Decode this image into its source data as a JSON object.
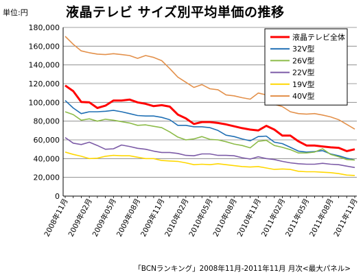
{
  "header": {
    "unit": "単位:円",
    "title": "液晶テレビ サイズ別平均単価の推移"
  },
  "footer": {
    "source": "「BCNランキング」2008年11月-2011年11月 月次<最大パネル>"
  },
  "chart_data": {
    "type": "line",
    "title": "液晶テレビ サイズ別平均単価の推移",
    "ylabel": "単位:円",
    "ylim": [
      0,
      180000
    ],
    "yticks": [
      0,
      20000,
      40000,
      60000,
      80000,
      100000,
      120000,
      140000,
      160000,
      180000
    ],
    "ytick_labels": [
      "0",
      "20,000",
      "40,000",
      "60,000",
      "80,000",
      "100,000",
      "120,000",
      "140,000",
      "160,000",
      "180,000"
    ],
    "x": [
      "2008年11月",
      "2008年12月",
      "2009年01月",
      "2009年02月",
      "2009年03月",
      "2009年04月",
      "2009年05月",
      "2009年06月",
      "2009年07月",
      "2009年08月",
      "2009年09月",
      "2009年10月",
      "2009年11月",
      "2009年12月",
      "2010年01月",
      "2010年02月",
      "2010年03月",
      "2010年04月",
      "2010年05月",
      "2010年06月",
      "2010年07月",
      "2010年08月",
      "2010年09月",
      "2010年10月",
      "2010年11月",
      "2010年12月",
      "2011年01月",
      "2011年02月",
      "2011年03月",
      "2011年04月",
      "2011年05月",
      "2011年06月",
      "2011年07月",
      "2011年08月",
      "2011年09月",
      "2011年10月",
      "2011年11月"
    ],
    "xtick_labels": [
      "2008年11月",
      "2009年02月",
      "2009年05月",
      "2009年08月",
      "2009年11月",
      "2010年02月",
      "2010年05月",
      "2010年08月",
      "2010年11月",
      "2011年02月",
      "2011年05月",
      "2011年08月",
      "2011年11月"
    ],
    "grid": true,
    "legend": "top-right",
    "series": [
      {
        "name": "液晶テレビ全体",
        "color": "#ff0000",
        "bold": true,
        "values": [
          118000,
          112000,
          100500,
          100000,
          94000,
          96500,
          102000,
          102000,
          103000,
          100000,
          98500,
          96000,
          97000,
          95500,
          87000,
          83000,
          77000,
          79000,
          79000,
          78000,
          76500,
          74500,
          72500,
          71000,
          70000,
          75000,
          71000,
          64500,
          64500,
          58500,
          54000,
          54000,
          53000,
          52000,
          51500,
          48000,
          50000
        ]
      },
      {
        "name": "32V型",
        "color": "#1f6fb4",
        "values": [
          102000,
          94000,
          88000,
          90000,
          90000,
          90500,
          91500,
          90000,
          88000,
          86000,
          85500,
          85500,
          84000,
          81500,
          75500,
          75500,
          74000,
          74000,
          73000,
          70000,
          65000,
          63500,
          61000,
          59000,
          63500,
          64000,
          57500,
          56000,
          52000,
          48000,
          47000,
          47500,
          48500,
          45000,
          43000,
          40500,
          38500
        ]
      },
      {
        "name": "26V型",
        "color": "#8cbb48",
        "values": [
          90000,
          87000,
          81000,
          82500,
          80000,
          82000,
          81000,
          79500,
          78000,
          75500,
          76000,
          74500,
          73000,
          68500,
          63000,
          60000,
          61000,
          63500,
          60500,
          60000,
          58000,
          55500,
          54000,
          51500,
          58500,
          59500,
          54000,
          52000,
          49500,
          46000,
          46000,
          47000,
          50500,
          44500,
          42000,
          39000,
          38500
        ]
      },
      {
        "name": "22V型",
        "color": "#7b5aa6",
        "values": [
          62500,
          56500,
          55000,
          57500,
          54000,
          50000,
          50500,
          54500,
          53000,
          51000,
          50000,
          48000,
          46500,
          46500,
          45500,
          43500,
          43000,
          45000,
          45000,
          43500,
          43500,
          43000,
          41000,
          39500,
          42000,
          40000,
          39000,
          37000,
          35500,
          34500,
          34000,
          34000,
          35000,
          34000,
          33500,
          32000,
          30500
        ]
      },
      {
        "name": "19V型",
        "color": "#ffd700",
        "values": [
          47000,
          44500,
          42500,
          40000,
          40500,
          42500,
          43500,
          43000,
          43000,
          41500,
          40000,
          40000,
          38000,
          37500,
          37000,
          35500,
          33500,
          34000,
          33500,
          34500,
          33500,
          32500,
          31500,
          31000,
          31500,
          30000,
          28500,
          29000,
          28500,
          26500,
          26000,
          26000,
          25500,
          25000,
          24000,
          22500,
          22000
        ]
      },
      {
        "name": "40V型",
        "color": "#e3904a",
        "values": [
          170500,
          162000,
          155000,
          153000,
          151500,
          151000,
          152000,
          151000,
          150000,
          147000,
          150000,
          148000,
          144500,
          136000,
          127000,
          121500,
          116000,
          119000,
          114500,
          113500,
          108000,
          107000,
          105000,
          103500,
          110000,
          108000,
          98000,
          95500,
          90000,
          88000,
          87500,
          88000,
          86500,
          84500,
          81500,
          76500,
          71500
        ]
      }
    ]
  }
}
